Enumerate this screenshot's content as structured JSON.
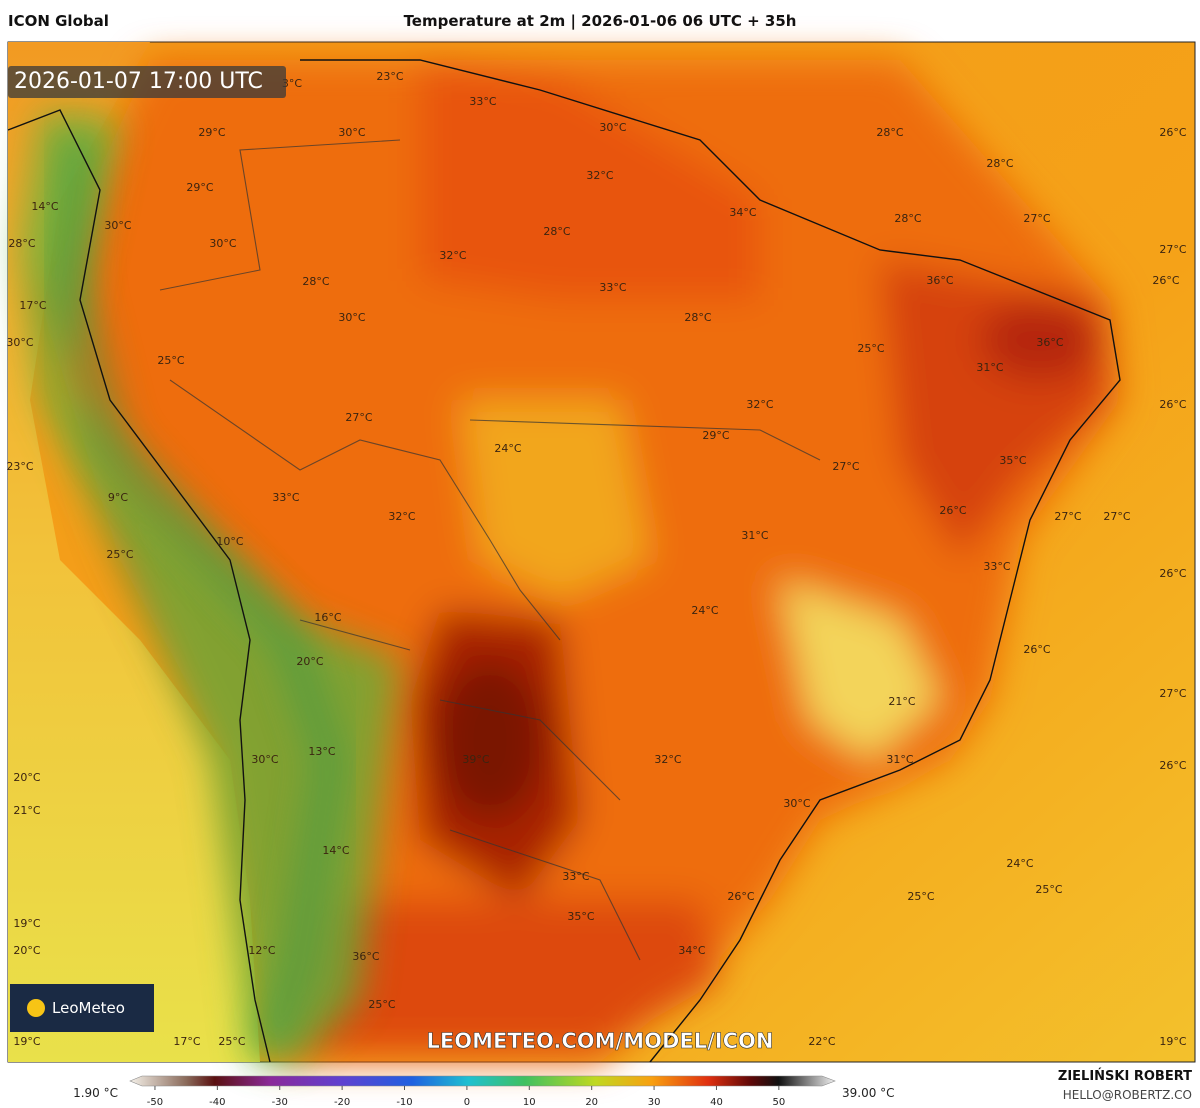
{
  "header": {
    "model": "ICON Global",
    "title": "Temperature at 2m | 2026-01-06 06 UTC + 35h"
  },
  "timestamp": "2026-01-07 17:00 UTC",
  "watermark": "LEOMETEO.COM/MODEL/ICON",
  "logo": "LeoMeteo",
  "author": {
    "name": "ZIELIŃSKI ROBERT",
    "email": "HELLO@ROBERTZ.CO"
  },
  "labels": [
    "3°C",
    "23°C",
    "33°C",
    "30°C",
    "28°C",
    "26°C",
    "29°C",
    "30°C",
    "28°C",
    "32°C",
    "29°C",
    "14°C",
    "34°C",
    "30°C",
    "28°C",
    "27°C",
    "28°C",
    "30°C",
    "28°C",
    "27°C",
    "32°C",
    "28°C",
    "33°C",
    "36°C",
    "26°C",
    "17°C",
    "30°C",
    "28°C",
    "30°C",
    "25°C",
    "36°C",
    "25°C",
    "31°C",
    "32°C",
    "26°C",
    "27°C",
    "29°C",
    "24°C",
    "23°C",
    "27°C",
    "35°C",
    "33°C",
    "9°C",
    "32°C",
    "26°C",
    "27°C",
    "27°C",
    "10°C",
    "31°C",
    "25°C",
    "33°C",
    "26°C",
    "24°C",
    "16°C",
    "26°C",
    "20°C",
    "27°C",
    "21°C",
    "13°C",
    "39°C",
    "32°C",
    "31°C",
    "30°C",
    "26°C",
    "20°C",
    "30°C",
    "21°C",
    "14°C",
    "24°C",
    "33°C",
    "25°C",
    "26°C",
    "35°C",
    "25°C",
    "19°C",
    "20°C",
    "12°C",
    "34°C",
    "36°C",
    "25°C",
    "17°C",
    "25°C",
    "22°C",
    "19°C",
    "19°C"
  ],
  "colorbar": {
    "min_label": "1.90 °C",
    "max_label": "39.00 °C",
    "range": [
      -54,
      59
    ],
    "ticks": [
      -50,
      -40,
      -30,
      -20,
      -10,
      0,
      10,
      20,
      30,
      40,
      50
    ]
  }
}
